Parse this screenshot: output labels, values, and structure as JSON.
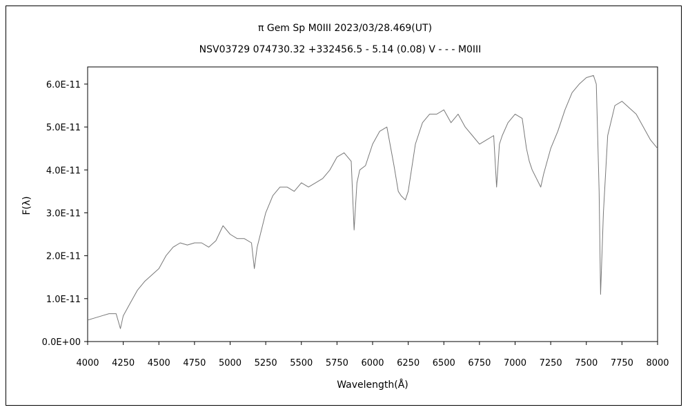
{
  "chart_data": {
    "type": "line",
    "title": "π Gem   Sp M0III   2023/03/28.469(UT)",
    "subtitle": "NSV03729 074730.32 +332456.5 - 5.14 (0.08) V - - - M0III",
    "xlabel": "Wavelength(Å)",
    "ylabel": "F(λ)",
    "xlim": [
      4000,
      8000
    ],
    "ylim": [
      0,
      6.4e-11
    ],
    "x_ticks": [
      4000,
      4250,
      4500,
      4750,
      5000,
      5250,
      5500,
      5750,
      6000,
      6250,
      6500,
      6750,
      7000,
      7250,
      7500,
      7750,
      8000
    ],
    "x_tick_labels": [
      "4000",
      "4250",
      "4500",
      "4750",
      "5000",
      "5250",
      "5500",
      "5750",
      "6000",
      "6250",
      "6500",
      "6750",
      "7000",
      "7250",
      "7500",
      "7750",
      "8000"
    ],
    "y_ticks": [
      0,
      1e-11,
      2e-11,
      3e-11,
      4e-11,
      5e-11,
      6e-11
    ],
    "y_tick_labels": [
      "0.0E+00",
      "1.0E-11",
      "2.0E-11",
      "3.0E-11",
      "4.0E-11",
      "5.0E-11",
      "6.0E-11"
    ],
    "grid": false,
    "line_color": "#777777",
    "series": [
      {
        "x": [
          4000,
          4050,
          4100,
          4150,
          4200,
          4230,
          4250,
          4300,
          4350,
          4400,
          4450,
          4500,
          4550,
          4600,
          4650,
          4700,
          4750,
          4800,
          4850,
          4900,
          4950,
          5000,
          5050,
          5100,
          5150,
          5170,
          5190,
          5250,
          5300,
          5350,
          5400,
          5450,
          5500,
          5550,
          5600,
          5650,
          5700,
          5750,
          5800,
          5850,
          5870,
          5890,
          5910,
          5950,
          6000,
          6050,
          6100,
          6150,
          6180,
          6200,
          6230,
          6250,
          6300,
          6350,
          6400,
          6450,
          6500,
          6550,
          6600,
          6650,
          6700,
          6750,
          6800,
          6850,
          6870,
          6890,
          6910,
          6950,
          7000,
          7050,
          7080,
          7100,
          7120,
          7150,
          7180,
          7200,
          7250,
          7300,
          7350,
          7400,
          7450,
          7500,
          7550,
          7570,
          7590,
          7600,
          7620,
          7650,
          7700,
          7750,
          7800,
          7850,
          7900,
          7950,
          8000
        ],
        "values": [
          5e-12,
          5.5e-12,
          6e-12,
          6.5e-12,
          6.5e-12,
          3e-12,
          6e-12,
          9e-12,
          1.2e-11,
          1.4e-11,
          1.55e-11,
          1.7e-11,
          2e-11,
          2.2e-11,
          2.3e-11,
          2.25e-11,
          2.3e-11,
          2.3e-11,
          2.2e-11,
          2.35e-11,
          2.7e-11,
          2.5e-11,
          2.4e-11,
          2.4e-11,
          2.3e-11,
          1.7e-11,
          2.2e-11,
          3e-11,
          3.4e-11,
          3.6e-11,
          3.6e-11,
          3.5e-11,
          3.7e-11,
          3.6e-11,
          3.7e-11,
          3.8e-11,
          4e-11,
          4.3e-11,
          4.4e-11,
          4.2e-11,
          2.6e-11,
          3.7e-11,
          4e-11,
          4.1e-11,
          4.6e-11,
          4.9e-11,
          5e-11,
          4.1e-11,
          3.5e-11,
          3.4e-11,
          3.3e-11,
          3.5e-11,
          4.6e-11,
          5.1e-11,
          5.3e-11,
          5.3e-11,
          5.4e-11,
          5.1e-11,
          5.3e-11,
          5e-11,
          4.8e-11,
          4.6e-11,
          4.7e-11,
          4.8e-11,
          3.6e-11,
          4.6e-11,
          4.8e-11,
          5.1e-11,
          5.3e-11,
          5.2e-11,
          4.5e-11,
          4.2e-11,
          4e-11,
          3.8e-11,
          3.6e-11,
          3.9e-11,
          4.5e-11,
          4.9e-11,
          5.4e-11,
          5.8e-11,
          6e-11,
          6.15e-11,
          6.2e-11,
          6e-11,
          3.5e-11,
          1.1e-11,
          3e-11,
          4.8e-11,
          5.5e-11,
          5.6e-11,
          5.45e-11,
          5.3e-11,
          5e-11,
          4.7e-11,
          4.5e-11
        ]
      }
    ]
  }
}
